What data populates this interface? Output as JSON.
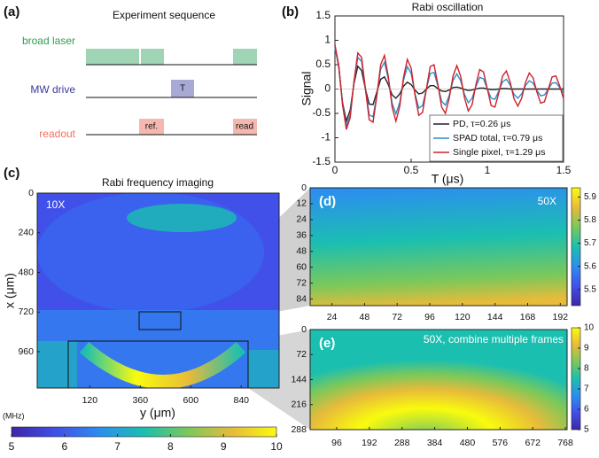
{
  "panel_labels": [
    "(a)",
    "(b)",
    "(c)",
    "(d)",
    "(e)"
  ],
  "sequence": {
    "title": "Experiment sequence",
    "channels": [
      "broad laser",
      "MW drive",
      "readout"
    ],
    "pulse_labels": [
      "T",
      "ref.",
      "read"
    ]
  },
  "chart_data": [
    {
      "type": "line",
      "title": "Rabi oscillation",
      "xlabel": "T (μs)",
      "ylabel": "Signal",
      "x": [
        0,
        0.025,
        0.05,
        0.075,
        0.1,
        0.125,
        0.15,
        0.175,
        0.2,
        0.225,
        0.25,
        0.275,
        0.3,
        0.325,
        0.35,
        0.375,
        0.4,
        0.425,
        0.45,
        0.475,
        0.5,
        0.525,
        0.55,
        0.575,
        0.6,
        0.625,
        0.65,
        0.675,
        0.7,
        0.725,
        0.75,
        0.775,
        0.8,
        0.825,
        0.85,
        0.875,
        0.9,
        0.925,
        0.95,
        0.975,
        1,
        1.025,
        1.05,
        1.075,
        1.1,
        1.125,
        1.15,
        1.175,
        1.2,
        1.225,
        1.25,
        1.275,
        1.3,
        1.325,
        1.35,
        1.375,
        1.4,
        1.425,
        1.45,
        1.475,
        1.5
      ],
      "series": [
        {
          "name": "PD, τ=0.26 μs",
          "color": "#222222",
          "values": [
            0.9,
            0.45,
            -0.28,
            -0.66,
            -0.43,
            0.11,
            0.47,
            0.38,
            0,
            -0.31,
            -0.32,
            -0.06,
            0.2,
            0.25,
            0.09,
            -0.12,
            -0.19,
            -0.1,
            0.06,
            0.14,
            0.09,
            -0.02,
            -0.1,
            -0.08,
            0,
            0.07,
            0.07,
            0.01,
            -0.04,
            -0.05,
            -0.02,
            0.03,
            0.04,
            0.02,
            -0.01,
            -0.03,
            -0.02,
            0,
            0.02,
            0.02,
            0,
            -0.01,
            -0.01,
            0,
            0.01,
            0.01,
            0,
            0,
            0,
            0,
            0,
            0,
            0,
            0,
            0,
            0,
            0,
            0,
            0,
            0,
            0
          ]
        },
        {
          "name": "SPAD total, τ=0.79 μs",
          "color": "#2e8ec8",
          "values": [
            0.85,
            0.46,
            -0.31,
            -0.76,
            -0.53,
            0.14,
            0.65,
            0.57,
            0,
            -0.53,
            -0.57,
            -0.12,
            0.41,
            0.55,
            0.21,
            -0.29,
            -0.51,
            -0.28,
            0.18,
            0.46,
            0.32,
            -0.09,
            -0.39,
            -0.34,
            0,
            0.32,
            0.34,
            0.07,
            -0.25,
            -0.33,
            -0.13,
            0.18,
            0.31,
            0.17,
            -0.11,
            -0.28,
            -0.19,
            0.05,
            0.24,
            0.21,
            0,
            -0.19,
            -0.21,
            -0.04,
            0.15,
            0.2,
            0.08,
            -0.11,
            -0.19,
            -0.1,
            0.07,
            0.17,
            0.12,
            -0.03,
            -0.14,
            -0.12,
            0,
            0.12,
            0.13,
            0.03,
            -0.09
          ]
        },
        {
          "name": "Single pixel, τ=1.29 μs",
          "color": "#d0202a",
          "values": [
            0.9,
            0.49,
            -0.33,
            -0.83,
            -0.59,
            0.16,
            0.74,
            0.65,
            0,
            -0.63,
            -0.68,
            -0.14,
            0.5,
            0.69,
            0.26,
            -0.37,
            -0.66,
            -0.36,
            0.24,
            0.61,
            0.43,
            -0.12,
            -0.54,
            -0.48,
            0,
            0.46,
            0.5,
            0.1,
            -0.37,
            -0.5,
            -0.19,
            0.27,
            0.48,
            0.26,
            -0.18,
            -0.45,
            -0.32,
            0.09,
            0.4,
            0.35,
            0,
            -0.34,
            -0.37,
            -0.08,
            0.27,
            0.37,
            0.14,
            -0.2,
            -0.35,
            -0.19,
            0.13,
            0.33,
            0.23,
            -0.06,
            -0.29,
            -0.26,
            0,
            0.25,
            0.27,
            0.06,
            -0.2
          ]
        }
      ],
      "xlim": [
        0,
        1.5
      ],
      "xticks": [
        0,
        0.5,
        1,
        1.5
      ],
      "ylim": [
        -1.5,
        1.5
      ],
      "yticks": [
        -1.5,
        -1,
        -0.5,
        0,
        0.5,
        1,
        1.5
      ],
      "legend": "lower right"
    },
    {
      "type": "heatmap",
      "title": "Rabi frequency imaging",
      "xlabel": "y (μm)",
      "ylabel": "x (μm)",
      "annotation": "10X",
      "xlim": [
        -130,
        1020
      ],
      "xticks": [
        120,
        360,
        600,
        840
      ],
      "ylim": [
        0,
        1180
      ],
      "yticks": [
        0,
        240,
        480,
        720,
        960
      ],
      "colorbar": {
        "label": "(MHz)",
        "lim": [
          5,
          10
        ],
        "ticks": [
          5,
          6,
          7,
          8,
          9,
          10
        ],
        "orientation": "horizontal"
      },
      "colormap": [
        "#3e26a8",
        "#4150e8",
        "#2c8ef0",
        "#1bbfb0",
        "#7cc85a",
        "#e8bb3a",
        "#f9fb0e"
      ]
    },
    {
      "type": "heatmap",
      "annotation": "50X",
      "xlim": [
        8,
        197
      ],
      "xticks": [
        24,
        48,
        72,
        96,
        120,
        144,
        168,
        192
      ],
      "ylim": [
        0,
        89
      ],
      "yticks": [
        0,
        12,
        24,
        36,
        48,
        60,
        72,
        84
      ],
      "colorbar": {
        "lim": [
          5.43,
          5.94
        ],
        "ticks": [
          5.5,
          5.6,
          5.7,
          5.8,
          5.9
        ],
        "orientation": "vertical"
      },
      "colormap": [
        "#3e26a8",
        "#4150e8",
        "#2c8ef0",
        "#1bbfb0",
        "#7cc85a",
        "#e8bb3a",
        "#f9fb0e"
      ]
    },
    {
      "type": "heatmap",
      "annotation": "50X, combine multiple frames",
      "xlim": [
        18,
        773
      ],
      "xticks": [
        96,
        192,
        288,
        384,
        480,
        576,
        672,
        768
      ],
      "ylim": [
        0,
        288
      ],
      "yticks": [
        0,
        72,
        144,
        216,
        288
      ],
      "colorbar": {
        "lim": [
          5,
          10
        ],
        "ticks": [
          5,
          6,
          7,
          8,
          9,
          10
        ],
        "orientation": "vertical"
      },
      "colormap": [
        "#3e26a8",
        "#4150e8",
        "#2c8ef0",
        "#1bbfb0",
        "#7cc85a",
        "#e8bb3a",
        "#f9fb0e"
      ]
    }
  ]
}
